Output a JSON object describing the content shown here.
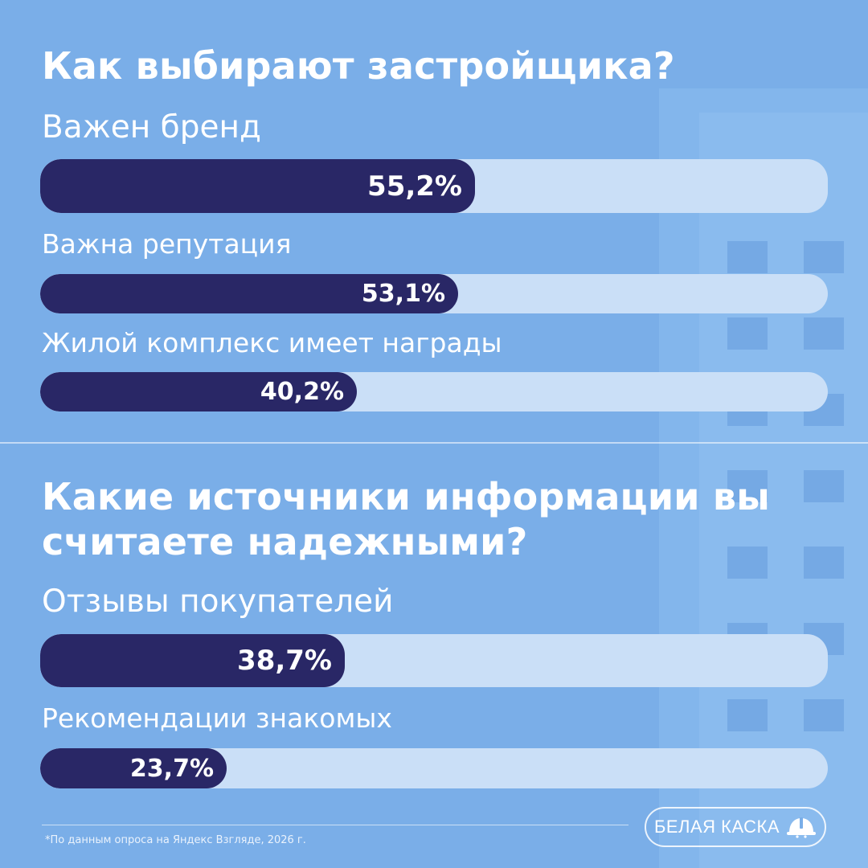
{
  "colors": {
    "background": "#7aaee8",
    "bar_fill": "#292766",
    "bar_track": "#cadff7",
    "text": "#ffffff"
  },
  "icons": {
    "brand_logo": "helmet-icon"
  },
  "chart_data": [
    {
      "type": "bar",
      "orientation": "horizontal",
      "title": "Как выбирают застройщика?",
      "categories": [
        "Важен бренд",
        "Важна репутация",
        "Жилой комплекс имеет награды"
      ],
      "values": [
        55.2,
        53.1,
        40.2
      ],
      "value_labels": [
        "55,2%",
        "53,1%",
        "40,2%"
      ],
      "xlim": [
        0,
        100
      ],
      "unit": "%"
    },
    {
      "type": "bar",
      "orientation": "horizontal",
      "title": "Какие источники информации вы считаете надежными?",
      "categories": [
        "Отзывы покупателей",
        "Рекомендации знакомых"
      ],
      "values": [
        38.7,
        23.7
      ],
      "value_labels": [
        "38,7%",
        "23,7%"
      ],
      "xlim": [
        0,
        100
      ],
      "unit": "%"
    }
  ],
  "footer": {
    "footnote": "*По данным опроса на Яндекс Взгляде, 2026 г.",
    "brand": "БЕЛАЯ КАСКА"
  }
}
